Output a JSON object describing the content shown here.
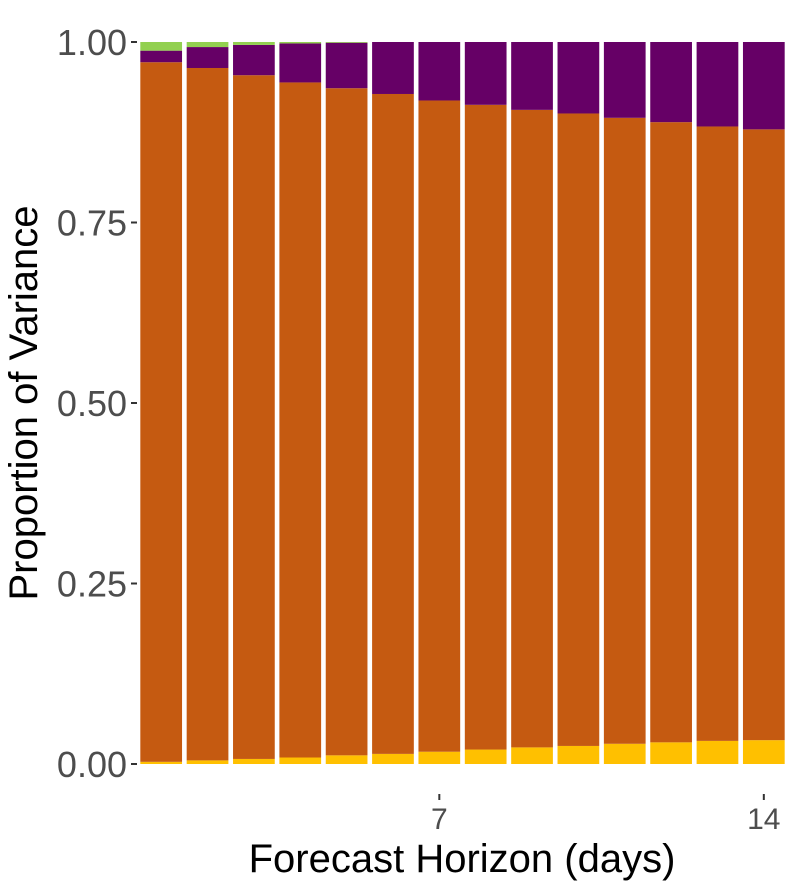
{
  "chart_data": {
    "type": "bar",
    "stacked": true,
    "xlabel": "Forecast Horizon (days)",
    "ylabel": "Proportion of Variance",
    "ylim": [
      0,
      1
    ],
    "yticks": [
      "0.00",
      "0.25",
      "0.50",
      "0.75",
      "1.00"
    ],
    "xticks": [
      {
        "value": 7,
        "label": "7"
      },
      {
        "value": 14,
        "label": "14"
      }
    ],
    "grid": false,
    "legend": "none",
    "x": [
      1,
      2,
      3,
      4,
      5,
      6,
      7,
      8,
      9,
      10,
      11,
      12,
      13,
      14
    ],
    "series": [
      {
        "color": "#FFC000",
        "values": [
          0.003,
          0.005,
          0.007,
          0.009,
          0.012,
          0.014,
          0.017,
          0.02,
          0.023,
          0.025,
          0.028,
          0.03,
          0.032,
          0.033
        ]
      },
      {
        "color": "#C55A11",
        "values": [
          0.969,
          0.959,
          0.947,
          0.935,
          0.924,
          0.914,
          0.902,
          0.893,
          0.883,
          0.876,
          0.867,
          0.859,
          0.851,
          0.846
        ]
      },
      {
        "color": "#660066",
        "values": [
          0.016,
          0.029,
          0.042,
          0.054,
          0.063,
          0.072,
          0.081,
          0.087,
          0.094,
          0.099,
          0.105,
          0.111,
          0.117,
          0.121
        ]
      },
      {
        "color": "#92D050",
        "values": [
          0.012,
          0.007,
          0.004,
          0.002,
          0.001,
          0.0,
          0.0,
          0.0,
          0.0,
          0.0,
          0.0,
          0.0,
          0.0,
          0.0
        ]
      }
    ]
  }
}
